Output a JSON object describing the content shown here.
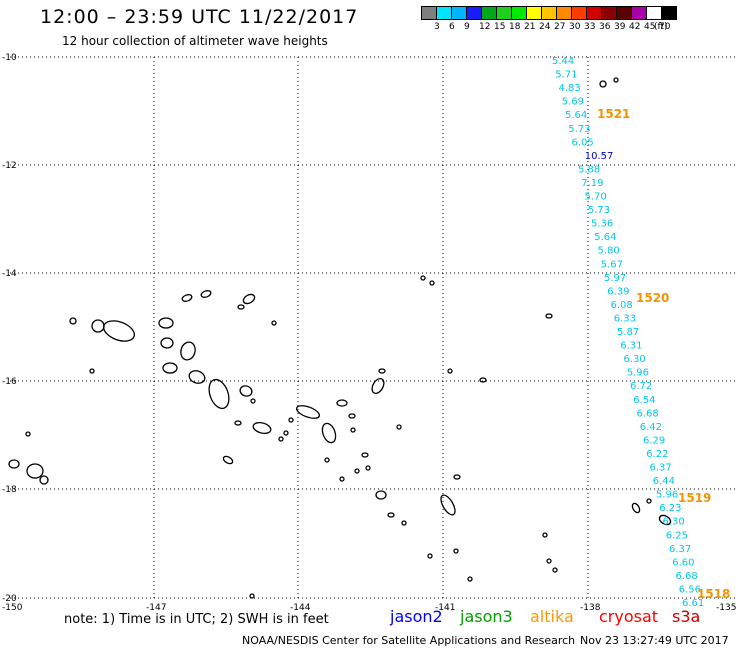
{
  "header": {
    "title": "12:00 – 23:59 UTC 11/22/2017",
    "subtitle": "12 hour collection of altimeter wave heights"
  },
  "legend": {
    "colors": [
      "#7f7f7f",
      "#00e5ff",
      "#00b3ff",
      "#1b1bff",
      "#00a81a",
      "#1fd11f",
      "#00ea00",
      "#ffff00",
      "#ffc400",
      "#ff8a00",
      "#ff3b00",
      "#d10000",
      "#8c0000",
      "#5a0000",
      "#aa00aa",
      "#ffffff",
      "#000000"
    ],
    "tick_labels": [
      "3",
      "6",
      "9",
      "12",
      "15",
      "18",
      "21",
      "24",
      "27",
      "30",
      "33",
      "36",
      "39",
      "42",
      "45",
      "70",
      "(ft)"
    ]
  },
  "axes": {
    "lat_labels": [
      "-10",
      "-12",
      "-14",
      "-16",
      "-18",
      "-20"
    ],
    "lon_labels": [
      "-150",
      "-147",
      "-144",
      "-141",
      "-138",
      "-135"
    ]
  },
  "passes": [
    {
      "id": "1521",
      "color": "#f29400"
    },
    {
      "id": "1520",
      "color": "#f29400"
    },
    {
      "id": "1519",
      "color": "#f29400"
    },
    {
      "id": "1518",
      "color": "#f29400"
    }
  ],
  "wave_heights": [
    {
      "v": "5.44",
      "c": "#00c8e8"
    },
    {
      "v": "5.71",
      "c": "#00c8e8"
    },
    {
      "v": "4.83",
      "c": "#00c8e8"
    },
    {
      "v": "5.69",
      "c": "#00c8e8"
    },
    {
      "v": "5.64",
      "c": "#00c8e8"
    },
    {
      "v": "5.73",
      "c": "#00c8e8"
    },
    {
      "v": "6.05",
      "c": "#00c8e8"
    },
    {
      "v": "10.57",
      "c": "#0000cc"
    },
    {
      "v": "5.88",
      "c": "#00c8e8"
    },
    {
      "v": "7.19",
      "c": "#00c8e8"
    },
    {
      "v": "5.70",
      "c": "#00c8e8"
    },
    {
      "v": "5.73",
      "c": "#00c8e8"
    },
    {
      "v": "5.36",
      "c": "#00c8e8"
    },
    {
      "v": "5.64",
      "c": "#00c8e8"
    },
    {
      "v": "5.80",
      "c": "#00c8e8"
    },
    {
      "v": "5.67",
      "c": "#00c8e8"
    },
    {
      "v": "5.97",
      "c": "#00c8e8"
    },
    {
      "v": "6.39",
      "c": "#00c8e8"
    },
    {
      "v": "6.08",
      "c": "#00c8e8"
    },
    {
      "v": "6.33",
      "c": "#00c8e8"
    },
    {
      "v": "5.87",
      "c": "#00c8e8"
    },
    {
      "v": "6.31",
      "c": "#00c8e8"
    },
    {
      "v": "6.30",
      "c": "#00c8e8"
    },
    {
      "v": "5.96",
      "c": "#00c8e8"
    },
    {
      "v": "6.72",
      "c": "#00c8e8"
    },
    {
      "v": "6.54",
      "c": "#00c8e8"
    },
    {
      "v": "6.68",
      "c": "#00c8e8"
    },
    {
      "v": "6.42",
      "c": "#00c8e8"
    },
    {
      "v": "6.29",
      "c": "#00c8e8"
    },
    {
      "v": "6.22",
      "c": "#00c8e8"
    },
    {
      "v": "6.37",
      "c": "#00c8e8"
    },
    {
      "v": "6.44",
      "c": "#00c8e8"
    },
    {
      "v": "5.96",
      "c": "#00c8e8"
    },
    {
      "v": "6.23",
      "c": "#00c8e8"
    },
    {
      "v": "6.30",
      "c": "#00c8e8"
    },
    {
      "v": "6.25",
      "c": "#00c8e8"
    },
    {
      "v": "6.37",
      "c": "#00c8e8"
    },
    {
      "v": "6.60",
      "c": "#00c8e8"
    },
    {
      "v": "6.68",
      "c": "#00c8e8"
    },
    {
      "v": "6.56",
      "c": "#00c8e8"
    },
    {
      "v": "6.61",
      "c": "#00c8e8"
    }
  ],
  "footer": {
    "note": "note:  1) Time is in UTC;  2) SWH is in feet",
    "satellites": [
      {
        "name": "jason2",
        "color": "#0000ff"
      },
      {
        "name": "jason3",
        "color": "#00a000"
      },
      {
        "name": "altika",
        "color": "#ff9900"
      },
      {
        "name": "cryosat",
        "color": "#ff0000"
      },
      {
        "name": "s3a",
        "color": "#cc0000"
      }
    ],
    "credit": "NOAA/NESDIS Center for Satellite Applications and Research",
    "timestamp": "Nov 23 13:27:49 UTC 2017"
  }
}
